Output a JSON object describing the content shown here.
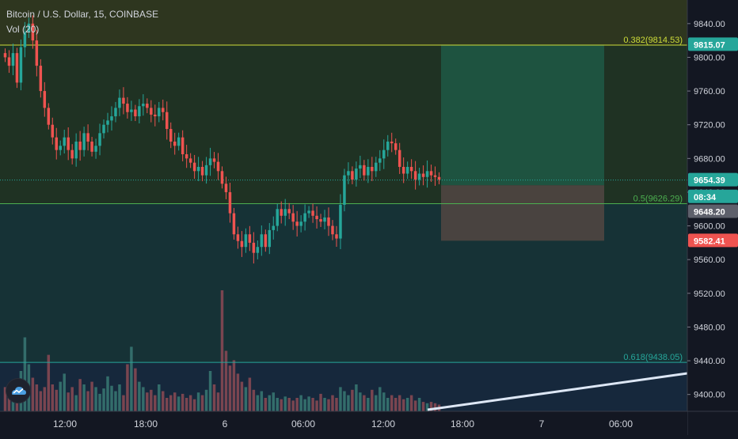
{
  "header": {
    "symbol_line": "Bitcoin / U.S. Dollar, 15, COINBASE",
    "volume_label": "Vol (20)"
  },
  "colors": {
    "background": "#131722",
    "up": "#26a69a",
    "down": "#ef5350",
    "volume_up": "#336d6b",
    "volume_down": "#7a4550",
    "band_top": "#2e361f",
    "band_upper": "#1f3223",
    "band_lower": "#163236",
    "band_bottom": "#16283c",
    "fib_382": "#cddc39",
    "fib_50": "#4caf50",
    "fib_618": "#26a69a",
    "price_badge": "#26a69a",
    "stop_badge": "#ef5350",
    "gray_badge": "#5d606b",
    "profit_zone": "#1e5945",
    "loss_zone": "#4f4541",
    "trend_line": "#dde7f5"
  },
  "chart_data": {
    "type": "candlestick",
    "y_axis": {
      "range": [
        9380,
        9868
      ],
      "ticks": [
        9840,
        9800,
        9760,
        9720,
        9680,
        9640,
        9600,
        9560,
        9520,
        9480,
        9440,
        9400
      ],
      "tick_labels": [
        "9840.00",
        "9800.00",
        "9760.00",
        "9720.00",
        "9680.00",
        "9640.00",
        "9600.00",
        "9560.00",
        "9520.00",
        "9480.00",
        "9440.00",
        "9400.00"
      ]
    },
    "x_axis": {
      "labels": [
        "12:00",
        "18:00",
        "6",
        "06:00",
        "12:00",
        "18:00",
        "7",
        "06:00"
      ]
    },
    "fib_levels": [
      {
        "ratio": 0.382,
        "price": 9814.53,
        "label": "0.382(9814.53)"
      },
      {
        "ratio": 0.5,
        "price": 9626.29,
        "label": "0.5(9626.29)"
      },
      {
        "ratio": 0.618,
        "price": 9438.05,
        "label": "0.618(9438.05)"
      }
    ],
    "long_position": {
      "entry": 9648.2,
      "target": 9815.07,
      "stop": 9582.41
    },
    "price_badges": [
      {
        "label": "9815.07",
        "value": 9815.07,
        "kind": "target"
      },
      {
        "label": "9654.39",
        "value": 9654.39,
        "kind": "last"
      },
      {
        "label": "08:34",
        "value": 9634.5,
        "kind": "countdown"
      },
      {
        "label": "9648.20",
        "value": 9617.0,
        "kind": "entry"
      },
      {
        "label": "9582.41",
        "value": 9582.41,
        "kind": "stop"
      }
    ],
    "last_price": 9654.39,
    "close_path": [
      9800,
      9790,
      9805,
      9770,
      9812,
      9830,
      9840,
      9820,
      9790,
      9760,
      9740,
      9720,
      9705,
      9690,
      9695,
      9705,
      9690,
      9680,
      9700,
      9690,
      9710,
      9700,
      9688,
      9695,
      9710,
      9720,
      9725,
      9730,
      9740,
      9752,
      9745,
      9735,
      9738,
      9730,
      9742,
      9745,
      9740,
      9732,
      9730,
      9740,
      9735,
      9715,
      9700,
      9695,
      9705,
      9685,
      9680,
      9675,
      9665,
      9670,
      9660,
      9672,
      9680,
      9676,
      9665,
      9650,
      9640,
      9615,
      9590,
      9582,
      9575,
      9590,
      9580,
      9568,
      9575,
      9590,
      9575,
      9595,
      9600,
      9620,
      9612,
      9620,
      9615,
      9605,
      9600,
      9605,
      9615,
      9618,
      9612,
      9608,
      9605,
      9610,
      9600,
      9590,
      9585,
      9625,
      9660,
      9665,
      9655,
      9668,
      9672,
      9660,
      9670,
      9665,
      9675,
      9680,
      9690,
      9700,
      9698,
      9690,
      9670,
      9662,
      9670,
      9665,
      9655,
      9662,
      9658,
      9665,
      9660,
      9658,
      9655
    ],
    "volume_path": [
      0.18,
      0.14,
      0.22,
      0.12,
      0.3,
      0.55,
      0.35,
      0.25,
      0.2,
      0.15,
      0.18,
      0.42,
      0.2,
      0.16,
      0.22,
      0.28,
      0.14,
      0.18,
      0.12,
      0.24,
      0.2,
      0.15,
      0.22,
      0.18,
      0.13,
      0.17,
      0.26,
      0.19,
      0.15,
      0.2,
      0.12,
      0.35,
      0.48,
      0.32,
      0.22,
      0.18,
      0.14,
      0.16,
      0.12,
      0.2,
      0.15,
      0.1,
      0.12,
      0.14,
      0.11,
      0.13,
      0.1,
      0.12,
      0.09,
      0.14,
      0.12,
      0.16,
      0.3,
      0.2,
      0.14,
      0.9,
      0.45,
      0.34,
      0.38,
      0.28,
      0.22,
      0.18,
      0.25,
      0.16,
      0.12,
      0.15,
      0.1,
      0.12,
      0.14,
      0.1,
      0.09,
      0.11,
      0.1,
      0.08,
      0.1,
      0.12,
      0.09,
      0.11,
      0.1,
      0.08,
      0.13,
      0.1,
      0.09,
      0.12,
      0.1,
      0.18,
      0.15,
      0.12,
      0.16,
      0.2,
      0.14,
      0.12,
      0.1,
      0.16,
      0.12,
      0.18,
      0.14,
      0.1,
      0.12,
      0.1,
      0.12,
      0.09,
      0.1,
      0.12,
      0.08,
      0.1,
      0.07,
      0.06,
      0.07,
      0.06,
      0.05
    ]
  }
}
